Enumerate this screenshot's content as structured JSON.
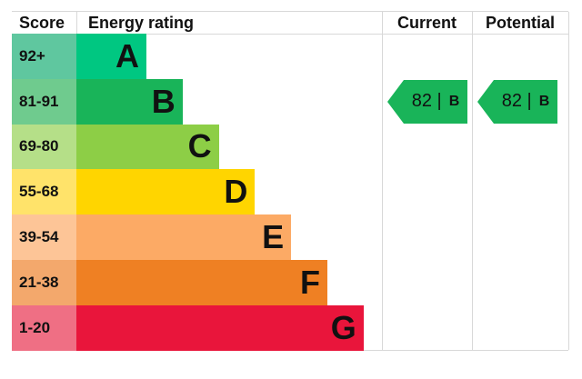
{
  "chart_data": {
    "type": "table",
    "headers": {
      "score": "Score",
      "rating": "Energy rating",
      "current": "Current",
      "potential": "Potential"
    },
    "bands": [
      {
        "score": "92+",
        "letter": "A",
        "color": "#00c781",
        "light": "#5fc79f"
      },
      {
        "score": "81-91",
        "letter": "B",
        "color": "#19b459",
        "light": "#6fcb8e"
      },
      {
        "score": "69-80",
        "letter": "C",
        "color": "#8dce46",
        "light": "#b5df88"
      },
      {
        "score": "55-68",
        "letter": "D",
        "color": "#ffd500",
        "light": "#ffe36a"
      },
      {
        "score": "39-54",
        "letter": "E",
        "color": "#fcaa65",
        "light": "#fdc597"
      },
      {
        "score": "21-38",
        "letter": "F",
        "color": "#ef8023",
        "light": "#f3a86c"
      },
      {
        "score": "1-20",
        "letter": "G",
        "color": "#e9153b",
        "light": "#ef6f84"
      }
    ],
    "current": {
      "value": "82",
      "letter": "B",
      "band_index": 1,
      "color": "#19b459"
    },
    "potential": {
      "value": "82",
      "letter": "B",
      "band_index": 1,
      "color": "#19b459"
    }
  }
}
